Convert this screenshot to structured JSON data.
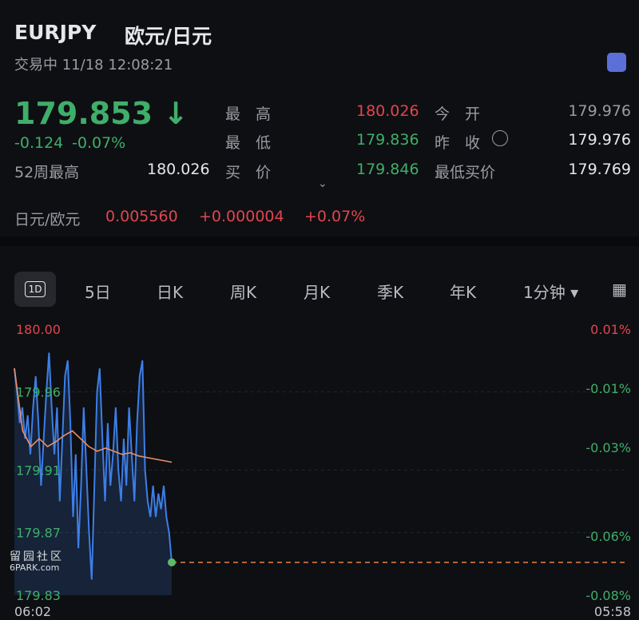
{
  "header": {
    "symbol": "EURJPY",
    "name": "欧元/日元",
    "status": "交易中 11/18 12:08:21"
  },
  "quote": {
    "price": "179.853",
    "change": "-0.124",
    "change_pct": "-0.07%",
    "stats": [
      [
        "最　高",
        "180.026",
        "今　开",
        "179.976"
      ],
      [
        "最　低",
        "179.836",
        "昨　收",
        "179.976"
      ],
      [
        "52周最高",
        "180.026",
        "买　价",
        "179.846",
        "最低买价",
        "179.769"
      ]
    ],
    "cross": {
      "label": "日元/欧元",
      "price": "0.005560",
      "change": "+0.000004",
      "change_pct": "+0.07%"
    }
  },
  "tabs": [
    "1D",
    "5日",
    "日K",
    "周K",
    "月K",
    "季K",
    "年K",
    "1分钟"
  ],
  "watermark": [
    "留园社区",
    "6PARK.com"
  ],
  "chart": {
    "type": "line",
    "ylim": [
      179.83,
      180.0
    ],
    "yticks": [
      {
        "value": 180.0,
        "label": "180.00"
      },
      179.96,
      179.91,
      179.87,
      179.83
    ],
    "y2lim": [
      -0.08,
      0.01
    ],
    "y2ticks": [
      {
        "value": 0.01,
        "label": "0.01%"
      },
      {
        "value": -0.01,
        "label": "-0.01%"
      },
      {
        "value": -0.03,
        "label": "-0.03%"
      },
      {
        "value": -0.06,
        "label": "-0.06%"
      },
      {
        "value": -0.08,
        "label": "-0.08%"
      }
    ],
    "xlabels": [
      "06:02",
      "05:58"
    ],
    "grid": true,
    "series": [
      {
        "color": "#3d7ee8",
        "values": [
          179.975,
          179.96,
          179.94,
          179.95,
          179.93,
          179.945,
          179.92,
          179.95,
          179.97,
          179.94,
          179.9,
          179.93,
          179.96,
          179.985,
          179.95,
          179.92,
          179.95,
          179.89,
          179.93,
          179.97,
          179.98,
          179.94,
          179.88,
          179.92,
          179.86,
          179.9,
          179.95,
          179.91,
          179.87,
          179.84,
          179.9,
          179.96,
          179.975,
          179.93,
          179.89,
          179.94,
          179.9,
          179.92,
          179.95,
          179.91,
          179.89,
          179.93,
          179.9,
          179.95,
          179.92,
          179.89,
          179.94,
          179.97,
          179.98,
          179.91,
          179.89,
          179.88,
          179.9,
          179.88,
          179.895,
          179.885,
          179.9,
          179.88,
          179.87,
          179.851
        ]
      },
      {
        "color": "#e8906a",
        "values": [
          179.975,
          179.935,
          179.925,
          179.93,
          179.925,
          179.928,
          179.932,
          179.935,
          179.93,
          179.925,
          179.922,
          179.924,
          179.922,
          179.92,
          179.921,
          179.919,
          179.918,
          179.917,
          179.916,
          179.915
        ]
      }
    ]
  }
}
